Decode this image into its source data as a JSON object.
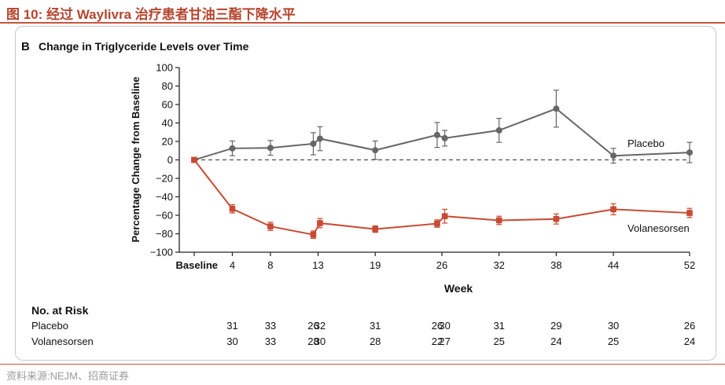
{
  "figure_title": "图 10:  经过 Waylivra 治疗患者甘油三酯下降水平",
  "source_note": "资料来源:NEJM、招商证券",
  "colors": {
    "accent": "#c8553a",
    "placebo": "#666666",
    "volanesorsen": "#c84a32"
  },
  "chart_data": {
    "type": "line",
    "panel_label": "B",
    "title": "Change in Triglyceride Levels over Time",
    "xlabel": "Week",
    "ylabel": "Percentage Change from Baseline",
    "ylim": [
      -100,
      100
    ],
    "yticks": [
      100,
      80,
      60,
      40,
      20,
      0,
      -20,
      -40,
      -60,
      -80,
      -100
    ],
    "ytick_labels": [
      "100",
      "80",
      "60",
      "40",
      "20",
      "0",
      "−20",
      "−40",
      "−60",
      "−80",
      "−100"
    ],
    "xlim": [
      0,
      52
    ],
    "xticks": [
      0,
      4,
      8,
      13,
      19,
      26,
      32,
      38,
      44,
      52
    ],
    "xtick_labels": [
      "Baseline",
      "4",
      "8",
      "13",
      "19",
      "26",
      "32",
      "38",
      "44",
      "52"
    ],
    "reference_line": 0,
    "series": [
      {
        "name": "Placebo",
        "marker": "circle",
        "color": "#666666",
        "x": [
          0,
          4,
          8,
          12.5,
          13.2,
          19,
          25.5,
          26.3,
          32,
          38,
          44,
          52
        ],
        "y": [
          0,
          12.5,
          13,
          17.5,
          23,
          10.5,
          27,
          23.5,
          32,
          55.5,
          4.5,
          8
        ],
        "err": [
          0,
          8,
          8,
          12,
          13,
          10,
          13.5,
          8.5,
          13,
          20,
          8,
          11
        ]
      },
      {
        "name": "Volanesorsen",
        "marker": "square",
        "color": "#c84a32",
        "x": [
          0,
          4,
          8,
          12.5,
          13.2,
          19,
          25.5,
          26.3,
          32,
          38,
          44,
          52
        ],
        "y": [
          0,
          -53,
          -72,
          -81,
          -68.5,
          -75,
          -69,
          -61,
          -65.5,
          -64,
          -53.5,
          -57.5
        ],
        "err": [
          0,
          4.5,
          4.5,
          4,
          5,
          3.5,
          4,
          7.5,
          4.5,
          5.5,
          6,
          5
        ]
      }
    ],
    "risk_table": {
      "header": "No. at Risk",
      "rows": [
        {
          "label": "Placebo",
          "values": [
            "31",
            "33",
            "26",
            "32",
            "31",
            "26",
            "30",
            "31",
            "29",
            "30",
            "26"
          ]
        },
        {
          "label": "Volanesorsen",
          "values": [
            "30",
            "33",
            "28",
            "30",
            "28",
            "22",
            "27",
            "25",
            "24",
            "25",
            "24"
          ]
        }
      ],
      "x": [
        4,
        8,
        12.5,
        13.2,
        19,
        25.5,
        26.3,
        32,
        38,
        44,
        52
      ]
    }
  }
}
